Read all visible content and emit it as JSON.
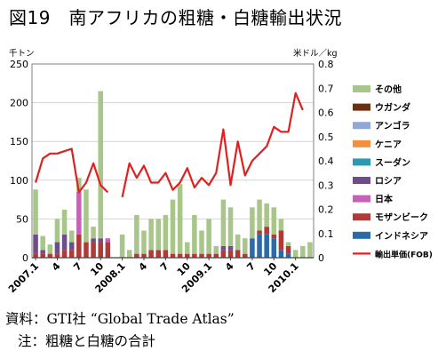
{
  "title": "図19　南アフリカの粗糖・白糖輸出状況",
  "source_text": "資料：GTI社 “Global Trade Atlas”",
  "note_text": "注：粗糖と白糖の合計",
  "colors": {
    "その他": "#a8c58a",
    "ウガンダ": "#6e2e10",
    "アンゴラ": "#8fa9d6",
    "ケニア": "#f2903c",
    "スーダン": "#2a9ab0",
    "ロシア": "#6e4d8a",
    "日本": "#c562b8",
    "モザンビーク": "#b03a38",
    "インドネシア": "#2a6aa8",
    "price": "#e02020"
  },
  "chart_data": {
    "type": "bar",
    "stacked": true,
    "title": "",
    "left_unit": "千トン",
    "right_unit": "米ドル／kg",
    "ylim": [
      0,
      250
    ],
    "yticks": [
      0,
      50,
      100,
      150,
      200,
      250
    ],
    "y2lim": [
      0,
      0.8
    ],
    "y2ticks": [
      "0",
      "0.1",
      "0.2",
      "0.3",
      "0.4",
      "0.5",
      "0.6",
      "0.7",
      "0.8"
    ],
    "grid": true,
    "legend_position": "right",
    "categories": [
      "2007.1",
      "2",
      "3",
      "4",
      "5",
      "6",
      "7",
      "8",
      "9",
      "10",
      "11",
      "12",
      "2008.1",
      "2",
      "3",
      "4",
      "5",
      "6",
      "7",
      "8",
      "9",
      "10",
      "11",
      "12",
      "2009.1",
      "2",
      "3",
      "4",
      "5",
      "6",
      "7",
      "8",
      "9",
      "10",
      "11",
      "12",
      "2010.1",
      "2",
      "3"
    ],
    "x_tick_labels": [
      {
        "index": 0,
        "label": "2007.1"
      },
      {
        "index": 3,
        "label": "4"
      },
      {
        "index": 6,
        "label": "7"
      },
      {
        "index": 9,
        "label": "10"
      },
      {
        "index": 12,
        "label": "2008.1"
      },
      {
        "index": 15,
        "label": "4"
      },
      {
        "index": 18,
        "label": "7"
      },
      {
        "index": 21,
        "label": "10"
      },
      {
        "index": 24,
        "label": "2009.1"
      },
      {
        "index": 27,
        "label": "4"
      },
      {
        "index": 30,
        "label": "7"
      },
      {
        "index": 33,
        "label": "10"
      },
      {
        "index": 36,
        "label": "2010.1"
      }
    ],
    "legend_order": [
      "その他",
      "ウガンダ",
      "アンゴラ",
      "ケニア",
      "スーダン",
      "ロシア",
      "日本",
      "モザンビーク",
      "インドネシア",
      "輸出単価(FOB)"
    ],
    "series": [
      {
        "name": "インドネシア",
        "values": [
          0,
          0,
          0,
          0,
          0,
          0,
          0,
          0,
          0,
          0,
          0,
          0,
          0,
          0,
          0,
          0,
          0,
          0,
          0,
          0,
          0,
          0,
          0,
          0,
          0,
          0,
          0,
          0,
          0,
          0,
          25,
          30,
          30,
          25,
          10,
          5,
          0,
          0,
          0
        ]
      },
      {
        "name": "モザンビーク",
        "values": [
          5,
          5,
          5,
          5,
          10,
          10,
          30,
          20,
          20,
          20,
          20,
          0,
          0,
          0,
          5,
          5,
          10,
          10,
          10,
          5,
          5,
          5,
          5,
          5,
          5,
          5,
          10,
          10,
          10,
          5,
          0,
          5,
          10,
          5,
          25,
          10,
          0,
          0,
          0
        ]
      },
      {
        "name": "日本",
        "values": [
          0,
          0,
          0,
          0,
          0,
          0,
          55,
          0,
          0,
          0,
          5,
          0,
          0,
          0,
          0,
          0,
          0,
          0,
          0,
          0,
          0,
          0,
          0,
          0,
          0,
          0,
          0,
          0,
          0,
          0,
          0,
          0,
          0,
          0,
          0,
          0,
          0,
          0,
          0
        ]
      },
      {
        "name": "ロシア",
        "values": [
          25,
          5,
          0,
          15,
          20,
          10,
          0,
          0,
          5,
          5,
          0,
          0,
          0,
          0,
          0,
          0,
          0,
          0,
          0,
          0,
          0,
          0,
          0,
          0,
          0,
          0,
          5,
          5,
          0,
          0,
          0,
          0,
          0,
          0,
          0,
          0,
          0,
          0,
          0
        ]
      },
      {
        "name": "スーダン",
        "values": [
          0,
          0,
          0,
          0,
          0,
          0,
          0,
          0,
          0,
          0,
          0,
          0,
          0,
          0,
          0,
          0,
          0,
          0,
          0,
          0,
          0,
          0,
          0,
          0,
          0,
          0,
          0,
          0,
          0,
          0,
          0,
          0,
          0,
          0,
          0,
          0,
          0,
          0,
          0
        ]
      },
      {
        "name": "ケニア",
        "values": [
          0,
          0,
          0,
          0,
          0,
          0,
          0,
          0,
          0,
          0,
          0,
          0,
          0,
          0,
          0,
          0,
          0,
          0,
          0,
          0,
          0,
          0,
          0,
          0,
          0,
          0,
          0,
          0,
          0,
          0,
          0,
          0,
          0,
          0,
          0,
          0,
          0,
          0,
          0
        ]
      },
      {
        "name": "アンゴラ",
        "values": [
          0,
          0,
          0,
          0,
          0,
          0,
          0,
          0,
          0,
          0,
          0,
          0,
          0,
          0,
          0,
          0,
          0,
          0,
          0,
          0,
          0,
          0,
          0,
          0,
          0,
          0,
          0,
          0,
          0,
          0,
          0,
          0,
          0,
          0,
          0,
          0,
          0,
          0,
          0
        ]
      },
      {
        "name": "ウガンダ",
        "values": [
          0,
          0,
          0,
          0,
          0,
          0,
          0,
          0,
          0,
          0,
          0,
          0,
          0,
          0,
          0,
          0,
          0,
          0,
          0,
          0,
          0,
          0,
          0,
          0,
          0,
          0,
          0,
          0,
          0,
          0,
          0,
          0,
          0,
          0,
          0,
          0,
          0,
          0,
          0
        ]
      },
      {
        "name": "その他",
        "values": [
          58,
          18,
          12,
          30,
          32,
          15,
          18,
          68,
          15,
          190,
          0,
          0,
          30,
          10,
          50,
          30,
          40,
          40,
          45,
          70,
          90,
          15,
          50,
          30,
          45,
          10,
          60,
          50,
          20,
          20,
          40,
          40,
          30,
          35,
          15,
          5,
          10,
          15,
          20
        ]
      }
    ],
    "line_series": {
      "name": "輸出単価(FOB)",
      "axis": "right",
      "values": [
        0.31,
        0.41,
        0.43,
        0.43,
        0.44,
        0.45,
        0.27,
        0.31,
        0.39,
        0.3,
        0.27,
        null,
        0.25,
        0.39,
        0.33,
        0.38,
        0.31,
        0.31,
        0.35,
        0.28,
        0.31,
        0.37,
        0.29,
        0.33,
        0.3,
        0.35,
        0.53,
        0.3,
        0.48,
        0.34,
        0.4,
        0.43,
        0.46,
        0.54,
        0.52,
        0.52,
        0.68,
        0.61,
        null
      ]
    }
  }
}
